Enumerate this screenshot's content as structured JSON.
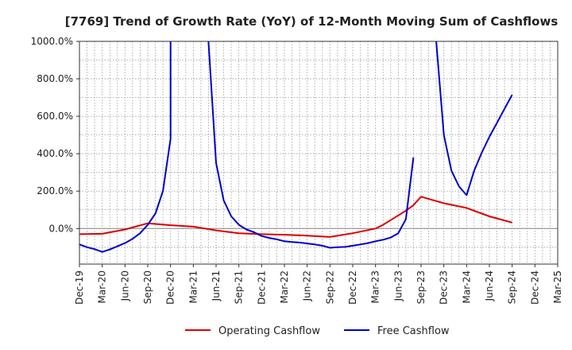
{
  "chart_data": {
    "type": "line",
    "title": "[7769]  Trend of Growth Rate (YoY) of 12-Month Moving Sum of Cashflows",
    "xlabel": "",
    "ylabel": "",
    "x_tick_labels": [
      "Dec-19",
      "Mar-20",
      "Jun-20",
      "Sep-20",
      "Dec-20",
      "Mar-21",
      "Jun-21",
      "Sep-21",
      "Dec-21",
      "Mar-22",
      "Jun-22",
      "Sep-22",
      "Dec-22",
      "Mar-23",
      "Jun-23",
      "Sep-23",
      "Dec-23",
      "Mar-24",
      "Jun-24",
      "Sep-24",
      "Dec-24",
      "Mar-25"
    ],
    "y_ticks": [
      0,
      200,
      400,
      600,
      800,
      1000
    ],
    "y_tick_labels": [
      "0.0%",
      "200.0%",
      "400.0%",
      "600.0%",
      "800.0%",
      "1000.0%"
    ],
    "ylim": [
      -190,
      1000
    ],
    "grid": true,
    "legend_position": "bottom",
    "series": [
      {
        "name": "Operating Cashflow",
        "color": "#dd0000",
        "points": [
          [
            "Dec-19",
            -30
          ],
          [
            "Mar-20",
            -28
          ],
          [
            "Jun-20",
            -5
          ],
          [
            "Sep-20",
            28
          ],
          [
            "Dec-20",
            18
          ],
          [
            "Mar-21",
            10
          ],
          [
            "Jun-21",
            -10
          ],
          [
            "Sep-21",
            -25
          ],
          [
            "Dec-21",
            -30
          ],
          [
            "Mar-22",
            -33
          ],
          [
            "Jun-22",
            -38
          ],
          [
            "Sep-22",
            -45
          ],
          [
            "Dec-22",
            -25
          ],
          [
            "Mar-23",
            0
          ],
          [
            "Apr-23",
            20
          ],
          [
            "May-23",
            45
          ],
          [
            "Jun-23",
            70
          ],
          [
            "Jul-23",
            95
          ],
          [
            "Aug-23",
            125
          ],
          [
            "Sep-23",
            170
          ],
          [
            "Dec-23",
            135
          ],
          [
            "Mar-24",
            110
          ],
          [
            "Jun-24",
            65
          ],
          [
            "Sep-24",
            32
          ]
        ]
      },
      {
        "name": "Free Cashflow",
        "color": "#0000cc",
        "segments": [
          [
            [
              "Dec-19",
              -85
            ],
            [
              "Jan-20",
              -100
            ],
            [
              "Feb-20",
              -110
            ],
            [
              "Mar-20",
              -125
            ],
            [
              "Apr-20",
              -112
            ],
            [
              "May-20",
              -95
            ],
            [
              "Jun-20",
              -78
            ],
            [
              "Jul-20",
              -55
            ],
            [
              "Aug-20",
              -25
            ],
            [
              "Sep-20",
              20
            ],
            [
              "Oct-20",
              80
            ],
            [
              "Nov-20",
              200
            ],
            [
              "Dec-20",
              480
            ],
            [
              "Dec-20",
              1000
            ]
          ],
          [
            [
              "May-21",
              1000
            ],
            [
              "Jun-21",
              350
            ],
            [
              "Jul-21",
              150
            ],
            [
              "Aug-21",
              65
            ],
            [
              "Sep-21",
              20
            ],
            [
              "Oct-21",
              -5
            ],
            [
              "Nov-21",
              -20
            ],
            [
              "Dec-21",
              -40
            ],
            [
              "Jan-22",
              -50
            ],
            [
              "Feb-22",
              -58
            ],
            [
              "Mar-22",
              -68
            ],
            [
              "Apr-22",
              -72
            ],
            [
              "May-22",
              -75
            ],
            [
              "Jun-22",
              -80
            ],
            [
              "Jul-22",
              -85
            ],
            [
              "Aug-22",
              -92
            ],
            [
              "Sep-22",
              -103
            ],
            [
              "Oct-22",
              -100
            ],
            [
              "Nov-22",
              -98
            ],
            [
              "Dec-22",
              -92
            ],
            [
              "Jan-23",
              -85
            ],
            [
              "Feb-23",
              -78
            ],
            [
              "Mar-23",
              -68
            ],
            [
              "Apr-23",
              -60
            ],
            [
              "May-23",
              -48
            ],
            [
              "Jun-23",
              -25
            ],
            [
              "Jul-23",
              50
            ],
            [
              "Aug-23",
              380
            ]
          ],
          [
            [
              "Nov-23",
              1000
            ],
            [
              "Dec-23",
              500
            ],
            [
              "Jan-24",
              310
            ],
            [
              "Feb-24",
              225
            ],
            [
              "Mar-24",
              178
            ],
            [
              "Apr-24",
              310
            ],
            [
              "May-24",
              405
            ],
            [
              "Jun-24",
              490
            ],
            [
              "Jul-24",
              565
            ],
            [
              "Aug-24",
              640
            ],
            [
              "Sep-24",
              715
            ]
          ]
        ]
      }
    ]
  }
}
